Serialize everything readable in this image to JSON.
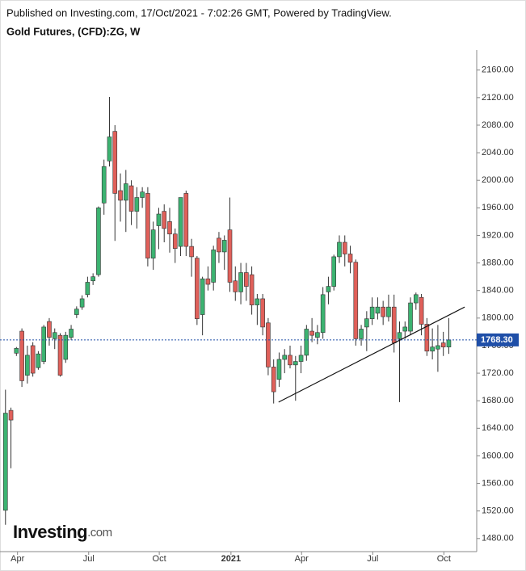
{
  "header": "Published on Investing.com, 17/Oct/2021 - 7:02:26 GMT, Powered by TradingView.",
  "logo": {
    "name": "Investing",
    "suffix": ".com"
  },
  "chart_data": {
    "type": "candlestick",
    "title": "Gold Futures, (CFD):ZG, W",
    "up_color": "#3cb371",
    "down_color": "#e0605a",
    "open": [
      1521,
      1666,
      1749,
      1781,
      1717,
      1760,
      1728,
      1737,
      1795,
      1770,
      1775,
      1740,
      1772,
      1805,
      1816,
      1834,
      1854,
      1863,
      1967,
      2028,
      2071,
      1985,
      1971,
      1992,
      1955,
      1975,
      1981,
      1887,
      1934,
      1955,
      1940,
      1922,
      1904,
      1981,
      1904,
      1887,
      1805,
      1857,
      1852,
      1916,
      1896,
      1928,
      1854,
      1838,
      1866,
      1863,
      1819,
      1828,
      1793,
      1729,
      1711,
      1740,
      1746,
      1732,
      1737,
      1746,
      1781,
      1772,
      1779,
      1838,
      1846,
      1889,
      1910,
      1893,
      1881,
      1770,
      1787,
      1799,
      1807,
      1816,
      1802,
      1816,
      1770,
      1781,
      1781,
      1822,
      1830,
      1791,
      1752,
      1755,
      1764,
      1758
    ],
    "high": [
      1696,
      1670,
      1758,
      1785,
      1760,
      1765,
      1752,
      1790,
      1800,
      1785,
      1778,
      1780,
      1790,
      1817,
      1833,
      1860,
      1865,
      1962,
      2030,
      2121,
      2080,
      2010,
      2015,
      2000,
      1990,
      1990,
      1990,
      1940,
      1960,
      1965,
      1960,
      1930,
      1975,
      1985,
      1915,
      1890,
      1860,
      1875,
      1905,
      1925,
      1920,
      1975,
      1875,
      1880,
      1880,
      1875,
      1835,
      1835,
      1800,
      1740,
      1750,
      1755,
      1760,
      1745,
      1760,
      1790,
      1800,
      1790,
      1845,
      1860,
      1892,
      1920,
      1920,
      1905,
      1885,
      1790,
      1810,
      1830,
      1830,
      1825,
      1834,
      1834,
      1795,
      1795,
      1830,
      1837,
      1835,
      1800,
      1785,
      1790,
      1780,
      1800
    ],
    "low": [
      1500,
      1582,
      1745,
      1700,
      1705,
      1715,
      1725,
      1733,
      1760,
      1755,
      1715,
      1735,
      1768,
      1800,
      1812,
      1830,
      1848,
      1860,
      1950,
      2020,
      1912,
      1940,
      1925,
      1935,
      1930,
      1960,
      1875,
      1870,
      1900,
      1910,
      1895,
      1880,
      1890,
      1890,
      1860,
      1790,
      1775,
      1840,
      1840,
      1880,
      1870,
      1838,
      1825,
      1820,
      1825,
      1805,
      1790,
      1775,
      1717,
      1676,
      1700,
      1720,
      1727,
      1680,
      1720,
      1738,
      1765,
      1762,
      1770,
      1820,
      1840,
      1880,
      1875,
      1865,
      1760,
      1760,
      1752,
      1790,
      1798,
      1790,
      1795,
      1750,
      1678,
      1770,
      1775,
      1812,
      1775,
      1745,
      1740,
      1722,
      1745,
      1748
    ],
    "close": [
      1662,
      1652,
      1756,
      1709,
      1746,
      1720,
      1748,
      1787,
      1772,
      1779,
      1717,
      1775,
      1784,
      1813,
      1828,
      1852,
      1860,
      1960,
      2020,
      2063,
      1981,
      1971,
      1995,
      1955,
      1975,
      1983,
      1887,
      1928,
      1951,
      1930,
      1922,
      1901,
      1975,
      1904,
      1889,
      1799,
      1857,
      1849,
      1899,
      1896,
      1913,
      1852,
      1838,
      1866,
      1846,
      1819,
      1828,
      1787,
      1729,
      1693,
      1740,
      1746,
      1732,
      1737,
      1746,
      1784,
      1775,
      1779,
      1834,
      1846,
      1889,
      1910,
      1893,
      1881,
      1770,
      1784,
      1799,
      1816,
      1816,
      1802,
      1816,
      1764,
      1779,
      1787,
      1822,
      1834,
      1791,
      1752,
      1758,
      1760,
      1758,
      1768.3
    ],
    "last_price": {
      "value": 1768.3,
      "label": "1768.30"
    },
    "trendline": {
      "start": [
        49.9,
        1678
      ],
      "end": [
        83.9,
        1816
      ]
    },
    "xlim": [
      -1,
      86.1
    ],
    "xticks": [
      {
        "value": 2.2,
        "label": "Apr"
      },
      {
        "value": 15.2,
        "label": "Jul"
      },
      {
        "value": 28.1,
        "label": "Oct"
      },
      {
        "value": 41.2,
        "label": "2021"
      },
      {
        "value": 54.1,
        "label": "Apr"
      },
      {
        "value": 67.1,
        "label": "Jul"
      },
      {
        "value": 80.1,
        "label": "Oct"
      }
    ],
    "ylim": [
      1461,
      2189
    ],
    "yticks": [
      {
        "value": 1480,
        "label": "1480.00"
      },
      {
        "value": 1520,
        "label": "1520.00"
      },
      {
        "value": 1560,
        "label": "1560.00"
      },
      {
        "value": 1600,
        "label": "1600.00"
      },
      {
        "value": 1640,
        "label": "1640.00"
      },
      {
        "value": 1680,
        "label": "1680.00"
      },
      {
        "value": 1720,
        "label": "1720.00"
      },
      {
        "value": 1760,
        "label": "1760.00"
      },
      {
        "value": 1800,
        "label": "1800.00"
      },
      {
        "value": 1840,
        "label": "1840.00"
      },
      {
        "value": 1880,
        "label": "1880.00"
      },
      {
        "value": 1920,
        "label": "1920.00"
      },
      {
        "value": 1960,
        "label": "1960.00"
      },
      {
        "value": 2000,
        "label": "2000.00"
      },
      {
        "value": 2040,
        "label": "2040.00"
      },
      {
        "value": 2080,
        "label": "2080.00"
      },
      {
        "value": 2120,
        "label": "2120.00"
      },
      {
        "value": 2160,
        "label": "2160.00"
      }
    ]
  }
}
